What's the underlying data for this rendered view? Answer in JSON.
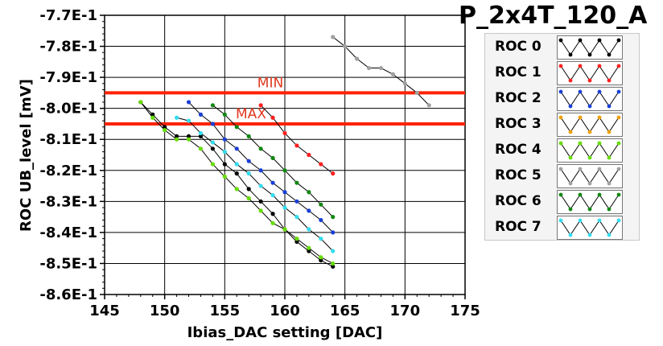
{
  "chart_data": {
    "type": "line",
    "title": "P_2x4T_120_A",
    "xlabel": "Ibias_DAC setting [DAC]",
    "ylabel": "ROC UB_level [mV]",
    "xlim": [
      145,
      175
    ],
    "ylim": [
      -0.86,
      -0.77
    ],
    "x_ticks": [
      "145",
      "150",
      "155",
      "160",
      "165",
      "170",
      "175"
    ],
    "y_ticks": [
      "-7.7E-1",
      "-7.8E-1",
      "-7.9E-1",
      "-8.0E-1",
      "-8.1E-1",
      "-8.2E-1",
      "-8.3E-1",
      "-8.4E-1",
      "-8.5E-1",
      "-8.6E-1"
    ],
    "grid": true,
    "legend_position": "right",
    "reference_lines": [
      {
        "label": "MIN",
        "y": -0.795,
        "color": "#ff2200"
      },
      {
        "label": "MAX",
        "y": -0.805,
        "color": "#ff2200"
      }
    ],
    "series": [
      {
        "name": "ROC 0",
        "color": "#000000",
        "x": [
          148,
          149,
          150,
          151,
          152,
          153,
          154,
          155,
          156,
          157,
          158,
          159,
          160,
          161,
          162,
          163,
          164
        ],
        "y": [
          -0.798,
          -0.802,
          -0.806,
          -0.809,
          -0.809,
          -0.809,
          -0.813,
          -0.818,
          -0.821,
          -0.826,
          -0.83,
          -0.834,
          -0.839,
          -0.843,
          -0.846,
          -0.849,
          -0.851
        ]
      },
      {
        "name": "ROC 1",
        "color": "#ff2020",
        "x": [
          158,
          159,
          160,
          161,
          162,
          163,
          164
        ],
        "y": [
          -0.799,
          -0.803,
          -0.808,
          -0.812,
          -0.815,
          -0.818,
          -0.821
        ]
      },
      {
        "name": "ROC 2",
        "color": "#1a3fd6",
        "x": [
          152,
          153,
          154,
          155,
          156,
          157,
          158,
          159,
          160,
          161,
          162,
          163,
          164
        ],
        "y": [
          -0.798,
          -0.802,
          -0.805,
          -0.81,
          -0.813,
          -0.817,
          -0.82,
          -0.824,
          -0.827,
          -0.83,
          -0.833,
          -0.836,
          -0.84
        ]
      },
      {
        "name": "ROC 3",
        "color": "#f0a000",
        "x": [],
        "y": []
      },
      {
        "name": "ROC 4",
        "color": "#66dd00",
        "x": [
          148,
          149,
          150,
          151,
          152,
          153,
          154,
          155,
          156,
          157,
          158,
          159,
          160,
          161,
          162,
          163,
          164
        ],
        "y": [
          -0.798,
          -0.803,
          -0.807,
          -0.81,
          -0.81,
          -0.813,
          -0.818,
          -0.822,
          -0.826,
          -0.829,
          -0.833,
          -0.837,
          -0.839,
          -0.842,
          -0.845,
          -0.848,
          -0.85
        ]
      },
      {
        "name": "ROC 5",
        "color": "#a0a0a0",
        "x": [
          164,
          165,
          166,
          167,
          168,
          169,
          170,
          171,
          172
        ],
        "y": [
          -0.777,
          -0.78,
          -0.784,
          -0.787,
          -0.787,
          -0.789,
          -0.792,
          -0.795,
          -0.799
        ]
      },
      {
        "name": "ROC 6",
        "color": "#118811",
        "x": [
          154,
          155,
          156,
          157,
          158,
          159,
          160,
          161,
          162,
          163,
          164
        ],
        "y": [
          -0.799,
          -0.802,
          -0.806,
          -0.809,
          -0.813,
          -0.816,
          -0.82,
          -0.824,
          -0.827,
          -0.831,
          -0.835
        ]
      },
      {
        "name": "ROC 7",
        "color": "#33ddee",
        "x": [
          151,
          152,
          153,
          154,
          155,
          156,
          157,
          158,
          159,
          160,
          161,
          162,
          163,
          164
        ],
        "y": [
          -0.803,
          -0.804,
          -0.808,
          -0.811,
          -0.814,
          -0.818,
          -0.821,
          -0.825,
          -0.828,
          -0.832,
          -0.835,
          -0.839,
          -0.842,
          -0.846
        ]
      }
    ]
  }
}
